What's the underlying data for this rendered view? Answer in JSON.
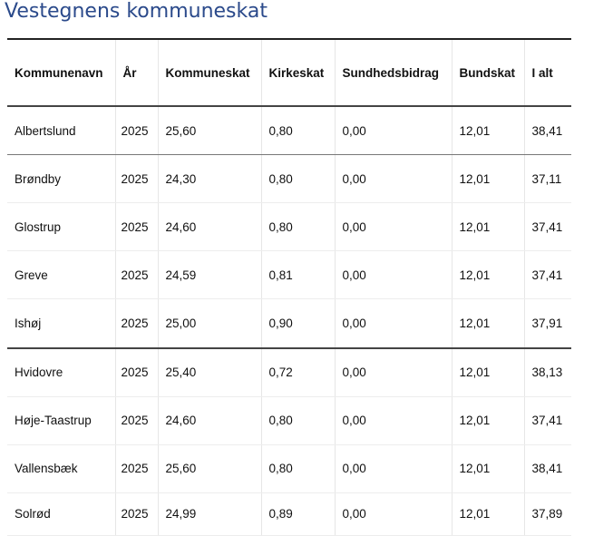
{
  "title": "Vestegnens kommuneskat",
  "table": {
    "headers": [
      "Kommunenavn",
      "År",
      "Kommuneskat",
      "Kirkeskat",
      "Sundhedsbidrag",
      "Bundskat",
      "I alt"
    ],
    "rows": [
      {
        "name": "Albertslund",
        "year": "2025",
        "kommuneskat": "25,60",
        "kirkeskat": "0,80",
        "sundhedsbidrag": "0,00",
        "bundskat": "12,01",
        "ialt": "38,41"
      },
      {
        "name": "Brøndby",
        "year": "2025",
        "kommuneskat": "24,30",
        "kirkeskat": "0,80",
        "sundhedsbidrag": "0,00",
        "bundskat": "12,01",
        "ialt": "37,11"
      },
      {
        "name": "Glostrup",
        "year": "2025",
        "kommuneskat": "24,60",
        "kirkeskat": "0,80",
        "sundhedsbidrag": "0,00",
        "bundskat": "12,01",
        "ialt": "37,41"
      },
      {
        "name": "Greve",
        "year": "2025",
        "kommuneskat": "24,59",
        "kirkeskat": "0,81",
        "sundhedsbidrag": "0,00",
        "bundskat": "12,01",
        "ialt": "37,41"
      },
      {
        "name": "Ishøj",
        "year": "2025",
        "kommuneskat": "25,00",
        "kirkeskat": "0,90",
        "sundhedsbidrag": "0,00",
        "bundskat": "12,01",
        "ialt": "37,91"
      },
      {
        "name": "Hvidovre",
        "year": "2025",
        "kommuneskat": "25,40",
        "kirkeskat": "0,72",
        "sundhedsbidrag": "0,00",
        "bundskat": "12,01",
        "ialt": "38,13"
      },
      {
        "name": "Høje-Taastrup",
        "year": "2025",
        "kommuneskat": "24,60",
        "kirkeskat": "0,80",
        "sundhedsbidrag": "0,00",
        "bundskat": "12,01",
        "ialt": "37,41"
      },
      {
        "name": "Vallensbæk",
        "year": "2025",
        "kommuneskat": "25,60",
        "kirkeskat": "0,80",
        "sundhedsbidrag": "0,00",
        "bundskat": "12,01",
        "ialt": "38,41"
      },
      {
        "name": "Solrød",
        "year": "2025",
        "kommuneskat": "24,99",
        "kirkeskat": "0,89",
        "sundhedsbidrag": "0,00",
        "bundskat": "12,01",
        "ialt": "37,89"
      }
    ]
  }
}
